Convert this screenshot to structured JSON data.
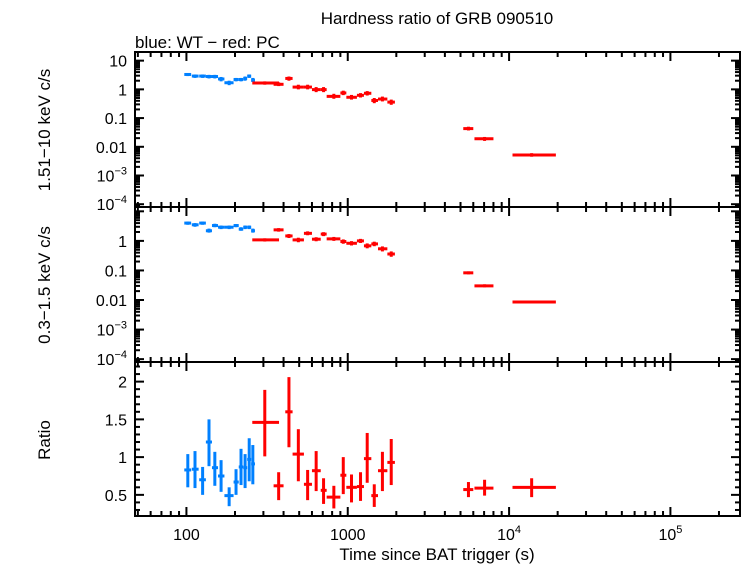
{
  "chart_data": {
    "type": "scatter",
    "title": "Hardness ratio of GRB 090510",
    "subtitle": "blue: WT − red: PC",
    "xlabel": "Time since BAT trigger (s)",
    "x_scale": "log",
    "xlim": [
      48,
      270000
    ],
    "x_ticks": [
      {
        "value": 100,
        "label": "100"
      },
      {
        "value": 1000,
        "label": "1000"
      },
      {
        "value": 10000,
        "label": "10",
        "exp": "4"
      },
      {
        "value": 100000,
        "label": "10",
        "exp": "5"
      }
    ],
    "colors": {
      "WT": "#0080ff",
      "PC": "#ff0000",
      "axes": "#000000"
    },
    "point_format": [
      "t",
      "t_lo",
      "t_hi",
      "value",
      "value_lo",
      "value_hi"
    ],
    "panels": [
      {
        "id": "hard",
        "ylabel": "1.51−10 keV c/s",
        "y_scale": "log",
        "ylim": [
          8e-05,
          20
        ],
        "y_ticks": [
          {
            "value": 10,
            "label": "10"
          },
          {
            "value": 1,
            "label": "1"
          },
          {
            "value": 0.1,
            "label": "0.1"
          },
          {
            "value": 0.01,
            "label": "0.01"
          },
          {
            "value": 0.001,
            "label": "10",
            "exp": "−3"
          },
          {
            "value": 0.0001,
            "label": "10",
            "exp": "−4"
          }
        ],
        "series": [
          {
            "mode": "WT",
            "points": [
              [
                102,
                97,
                107,
                3.3,
                2.9,
                3.7
              ],
              [
                113,
                108,
                119,
                2.9,
                2.5,
                3.3
              ],
              [
                126,
                120,
                132,
                2.9,
                2.5,
                3.3
              ],
              [
                138,
                132,
                144,
                2.8,
                2.4,
                3.2
              ],
              [
                150,
                144,
                157,
                2.8,
                2.4,
                3.2
              ],
              [
                164,
                157,
                172,
                2.3,
                1.9,
                2.7
              ],
              [
                184,
                172,
                196,
                1.7,
                1.4,
                2.0
              ],
              [
                203,
                196,
                211,
                2.2,
                1.9,
                2.5
              ],
              [
                218,
                211,
                225,
                2.2,
                1.9,
                2.5
              ],
              [
                231,
                225,
                238,
                2.4,
                2.0,
                2.8
              ],
              [
                245,
                238,
                252,
                2.9,
                2.5,
                3.3
              ],
              [
                258,
                252,
                266,
                2.1,
                1.8,
                2.5
              ]
            ]
          },
          {
            "mode": "PC",
            "points": [
              [
                306,
                256,
                375,
                1.67,
                1.45,
                1.9
              ],
              [
                373,
                347,
                400,
                1.5,
                1.3,
                1.75
              ],
              [
                432,
                410,
                455,
                2.4,
                2.0,
                2.8
              ],
              [
                494,
                455,
                535,
                1.2,
                1.0,
                1.45
              ],
              [
                564,
                535,
                600,
                1.2,
                1.0,
                1.45
              ],
              [
                637,
                600,
                680,
                0.98,
                0.8,
                1.2
              ],
              [
                708,
                680,
                740,
                0.98,
                0.8,
                1.2
              ],
              [
                820,
                740,
                900,
                0.57,
                0.47,
                0.7
              ],
              [
                938,
                900,
                980,
                0.75,
                0.63,
                0.9
              ],
              [
                1055,
                980,
                1140,
                0.53,
                0.44,
                0.64
              ],
              [
                1200,
                1140,
                1260,
                0.62,
                0.52,
                0.74
              ],
              [
                1320,
                1260,
                1400,
                0.73,
                0.61,
                0.87
              ],
              [
                1460,
                1400,
                1540,
                0.41,
                0.33,
                0.5
              ],
              [
                1640,
                1540,
                1760,
                0.46,
                0.38,
                0.56
              ],
              [
                1860,
                1760,
                1960,
                0.36,
                0.29,
                0.44
              ],
              [
                5600,
                5200,
                6000,
                0.043,
                0.037,
                0.05
              ],
              [
                7050,
                6100,
                8000,
                0.019,
                0.016,
                0.022
              ],
              [
                13800,
                10500,
                19500,
                0.0052,
                0.0045,
                0.006
              ]
            ]
          }
        ]
      },
      {
        "id": "soft",
        "ylabel": "0.3−1.5 keV c/s",
        "y_scale": "log",
        "ylim": [
          8e-05,
          14
        ],
        "y_ticks": [
          {
            "value": 1,
            "label": "1"
          },
          {
            "value": 0.1,
            "label": "0.1"
          },
          {
            "value": 0.01,
            "label": "0.01"
          },
          {
            "value": 0.001,
            "label": "10",
            "exp": "−3"
          },
          {
            "value": 0.0001,
            "label": "10",
            "exp": "−4"
          }
        ],
        "series": [
          {
            "mode": "WT",
            "points": [
              [
                102,
                97,
                107,
                4.0,
                3.5,
                4.5
              ],
              [
                113,
                108,
                119,
                3.5,
                3.0,
                4.0
              ],
              [
                126,
                120,
                132,
                4.0,
                3.5,
                4.5
              ],
              [
                138,
                132,
                144,
                2.2,
                1.9,
                2.6
              ],
              [
                150,
                144,
                157,
                3.3,
                2.9,
                3.8
              ],
              [
                164,
                157,
                172,
                2.9,
                2.5,
                3.3
              ],
              [
                184,
                172,
                196,
                2.9,
                2.5,
                3.3
              ],
              [
                203,
                196,
                211,
                3.3,
                2.9,
                3.7
              ],
              [
                218,
                211,
                225,
                2.5,
                2.2,
                2.9
              ],
              [
                231,
                225,
                238,
                2.9,
                2.5,
                3.3
              ],
              [
                245,
                238,
                252,
                2.9,
                2.5,
                3.3
              ],
              [
                258,
                252,
                266,
                2.2,
                1.9,
                2.6
              ]
            ]
          },
          {
            "mode": "PC",
            "points": [
              [
                306,
                256,
                375,
                1.08,
                0.95,
                1.22
              ],
              [
                373,
                347,
                400,
                2.36,
                2.05,
                2.7
              ],
              [
                432,
                410,
                455,
                1.47,
                1.25,
                1.7
              ],
              [
                494,
                455,
                535,
                1.08,
                0.9,
                1.28
              ],
              [
                564,
                535,
                600,
                1.8,
                1.55,
                2.1
              ],
              [
                637,
                600,
                680,
                1.14,
                0.97,
                1.33
              ],
              [
                708,
                680,
                740,
                1.7,
                1.45,
                1.97
              ],
              [
                820,
                740,
                900,
                1.17,
                1.0,
                1.36
              ],
              [
                938,
                900,
                980,
                0.95,
                0.8,
                1.12
              ],
              [
                1055,
                980,
                1140,
                0.83,
                0.7,
                0.98
              ],
              [
                1200,
                1140,
                1260,
                1.0,
                0.85,
                1.17
              ],
              [
                1320,
                1260,
                1400,
                0.68,
                0.56,
                0.82
              ],
              [
                1460,
                1400,
                1540,
                0.79,
                0.66,
                0.94
              ],
              [
                1640,
                1540,
                1760,
                0.54,
                0.44,
                0.65
              ],
              [
                1860,
                1760,
                1960,
                0.36,
                0.29,
                0.44
              ],
              [
                5600,
                5200,
                6000,
                0.083,
                0.074,
                0.093
              ],
              [
                7050,
                6100,
                8000,
                0.03,
                0.027,
                0.034
              ],
              [
                13800,
                10500,
                19500,
                0.0086,
                0.0077,
                0.0096
              ]
            ]
          }
        ]
      },
      {
        "id": "ratio",
        "ylabel": "Ratio",
        "y_scale": "linear",
        "ylim": [
          0.22,
          2.26
        ],
        "y_ticks": [
          {
            "value": 0.5,
            "label": "0.5"
          },
          {
            "value": 1,
            "label": "1"
          },
          {
            "value": 1.5,
            "label": "1.5"
          },
          {
            "value": 2,
            "label": "2"
          }
        ],
        "y_minor_step": 0.1,
        "series": [
          {
            "mode": "WT",
            "points": [
              [
                102,
                97,
                107,
                0.83,
                0.6,
                1.04
              ],
              [
                113,
                108,
                119,
                0.84,
                0.59,
                1.08
              ],
              [
                126,
                120,
                132,
                0.7,
                0.5,
                0.87
              ],
              [
                138,
                132,
                144,
                1.2,
                0.88,
                1.5
              ],
              [
                150,
                144,
                157,
                0.86,
                0.62,
                1.07
              ],
              [
                164,
                157,
                172,
                0.75,
                0.54,
                0.96
              ],
              [
                184,
                172,
                196,
                0.49,
                0.35,
                0.6
              ],
              [
                203,
                196,
                211,
                0.67,
                0.5,
                0.84
              ],
              [
                218,
                211,
                225,
                0.87,
                0.63,
                1.11
              ],
              [
                231,
                225,
                238,
                0.86,
                0.59,
                1.04
              ],
              [
                245,
                238,
                252,
                0.97,
                0.68,
                1.25
              ],
              [
                258,
                252,
                266,
                0.91,
                0.64,
                1.16
              ]
            ]
          },
          {
            "mode": "PC",
            "points": [
              [
                306,
                256,
                375,
                1.46,
                1.01,
                1.89
              ],
              [
                373,
                347,
                400,
                0.62,
                0.43,
                0.8
              ],
              [
                432,
                410,
                455,
                1.6,
                1.13,
                2.06
              ],
              [
                494,
                455,
                535,
                1.04,
                0.68,
                1.37
              ],
              [
                564,
                535,
                600,
                0.64,
                0.43,
                0.83
              ],
              [
                637,
                600,
                680,
                0.82,
                0.55,
                1.08
              ],
              [
                708,
                680,
                740,
                0.56,
                0.38,
                0.72
              ],
              [
                820,
                740,
                900,
                0.47,
                0.32,
                0.62
              ],
              [
                938,
                900,
                980,
                0.76,
                0.51,
                1.0
              ],
              [
                1055,
                980,
                1140,
                0.6,
                0.4,
                0.77
              ],
              [
                1200,
                1140,
                1260,
                0.61,
                0.42,
                0.8
              ],
              [
                1320,
                1260,
                1400,
                0.98,
                0.66,
                1.32
              ],
              [
                1460,
                1400,
                1540,
                0.49,
                0.34,
                0.64
              ],
              [
                1640,
                1540,
                1760,
                0.82,
                0.55,
                1.07
              ],
              [
                1860,
                1760,
                1960,
                0.93,
                0.63,
                1.24
              ],
              [
                5600,
                5200,
                6000,
                0.57,
                0.47,
                0.67
              ],
              [
                7050,
                6100,
                8000,
                0.59,
                0.49,
                0.7
              ],
              [
                13800,
                10500,
                19500,
                0.6,
                0.47,
                0.72
              ]
            ]
          }
        ]
      }
    ]
  }
}
